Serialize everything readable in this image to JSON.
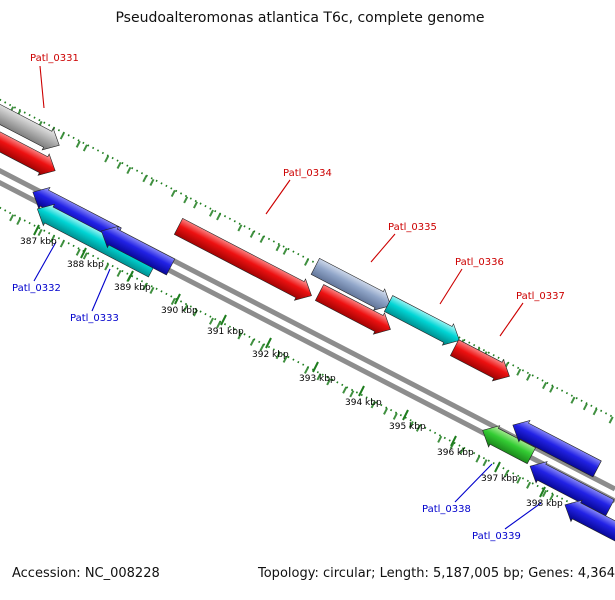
{
  "title": "Pseudoalteromonas atlantica T6c, complete genome",
  "footer": {
    "accession": "Accession: NC_008228",
    "summary": "Topology: circular; Length: 5,187,005 bp; Genes: 4,364"
  },
  "ruler": {
    "unit": "kbp",
    "tick_labels": [
      "387 kbp",
      "388 kbp",
      "389 kbp",
      "390 kbp",
      "391 kbp",
      "392 kbp",
      "393 kbp",
      "394 kbp",
      "395 kbp",
      "396 kbp",
      "397 kbp",
      "398 kbp"
    ]
  },
  "gene_labels": [
    {
      "text": "Patl_0331",
      "strand": "forward"
    },
    {
      "text": "Patl_0332",
      "strand": "reverse"
    },
    {
      "text": "Patl_0333",
      "strand": "reverse"
    },
    {
      "text": "Patl_0334",
      "strand": "forward"
    },
    {
      "text": "Patl_0335",
      "strand": "forward"
    },
    {
      "text": "Patl_0336",
      "strand": "forward"
    },
    {
      "text": "Patl_0337",
      "strand": "forward"
    },
    {
      "text": "Patl_0338",
      "strand": "reverse"
    },
    {
      "text": "Patl_0339",
      "strand": "reverse"
    }
  ],
  "features": [
    {
      "id": "f01",
      "color": "gray",
      "strand": "forward",
      "label": "Patl_0331"
    },
    {
      "id": "f02",
      "color": "red",
      "strand": "forward",
      "label": null
    },
    {
      "id": "f03",
      "color": "blue",
      "strand": "reverse",
      "label": "Patl_0332"
    },
    {
      "id": "f04",
      "color": "cyan",
      "strand": "reverse",
      "label": "Patl_0333"
    },
    {
      "id": "f05",
      "color": "blue",
      "strand": "reverse",
      "label": null
    },
    {
      "id": "f06",
      "color": "red",
      "strand": "forward",
      "label": "Patl_0334"
    },
    {
      "id": "f07",
      "color": "steel",
      "strand": "forward",
      "label": "Patl_0335"
    },
    {
      "id": "f08",
      "color": "red",
      "strand": "forward",
      "label": null
    },
    {
      "id": "f09",
      "color": "cyan",
      "strand": "forward",
      "label": "Patl_0336"
    },
    {
      "id": "f10",
      "color": "red",
      "strand": "forward",
      "label": "Patl_0337"
    },
    {
      "id": "f11",
      "color": "green",
      "strand": "reverse",
      "label": "Patl_0338"
    },
    {
      "id": "f12",
      "color": "blue",
      "strand": "reverse",
      "label": null
    },
    {
      "id": "f13",
      "color": "blue",
      "strand": "reverse",
      "label": "Patl_0339"
    },
    {
      "id": "f14",
      "color": "blue",
      "strand": "reverse",
      "label": null
    }
  ],
  "colors": {
    "forward_label": "#cc0000",
    "reverse_label": "#0000cc",
    "feature_red": "#ee1111",
    "feature_blue": "#2222e6",
    "feature_cyan": "#00d5d5",
    "feature_green": "#33cc33",
    "feature_gray": "#b5b5b5",
    "feature_steel": "#90a5c8",
    "backbone_gray": "#8d8d8d",
    "ruler_green": "#1e7d1e"
  }
}
